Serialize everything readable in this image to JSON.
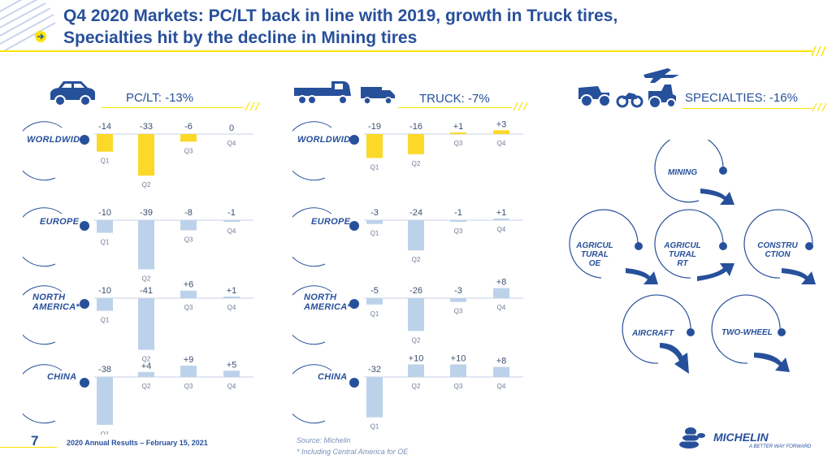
{
  "title": {
    "line1": "Q4 2020 Markets: PC/LT back in line with 2019, growth in Truck tires,",
    "line2": "Specialties hit by the decline in Mining tires"
  },
  "sections": {
    "pclt": "PC/LT: -13%",
    "truck": "TRUCK: -7%",
    "specialties": "SPECIALTIES: -16%"
  },
  "regions": [
    "WORLDWIDE",
    "EUROPE",
    "NORTH AMERICA*",
    "CHINA"
  ],
  "colors": {
    "brand": "#27509b",
    "highlight": "#fcd928",
    "bar": "#bcd2ea",
    "accent_line": "#fce500"
  },
  "chart_data": [
    {
      "type": "bar",
      "title": "PC/LT: -13%",
      "categories": [
        "Q1",
        "Q2",
        "Q3",
        "Q4"
      ],
      "series": [
        {
          "name": "WORLDWIDE",
          "values": [
            -14,
            -33,
            -6,
            0
          ],
          "labels": [
            "-14",
            "-33",
            "-6",
            "0"
          ]
        },
        {
          "name": "EUROPE",
          "values": [
            -10,
            -39,
            -8,
            -1
          ],
          "labels": [
            "-10",
            "-39",
            "-8",
            "-1"
          ]
        },
        {
          "name": "NORTH AMERICA*",
          "values": [
            -10,
            -41,
            6,
            1
          ],
          "labels": [
            "-10",
            "-41",
            "+6",
            "+1"
          ]
        },
        {
          "name": "CHINA",
          "values": [
            -38,
            4,
            9,
            5
          ],
          "labels": [
            "-38",
            "+4",
            "+9",
            "+5"
          ]
        }
      ]
    },
    {
      "type": "bar",
      "title": "TRUCK: -7%",
      "categories": [
        "Q1",
        "Q2",
        "Q3",
        "Q4"
      ],
      "series": [
        {
          "name": "WORLDWIDE",
          "values": [
            -19,
            -16,
            1,
            3
          ],
          "labels": [
            "-19",
            "-16",
            "+1",
            "+3"
          ]
        },
        {
          "name": "EUROPE",
          "values": [
            -3,
            -24,
            -1,
            1
          ],
          "labels": [
            "-3",
            "-24",
            "-1",
            "+1"
          ]
        },
        {
          "name": "NORTH AMERICA*",
          "values": [
            -5,
            -26,
            -3,
            8
          ],
          "labels": [
            "-5",
            "-26",
            "-3",
            "+8"
          ]
        },
        {
          "name": "CHINA",
          "values": [
            -32,
            10,
            10,
            8
          ],
          "labels": [
            "-32",
            "+10",
            "+10",
            "+8"
          ]
        }
      ]
    }
  ],
  "specialties": [
    {
      "key": "mining",
      "lines": [
        "MINING"
      ]
    },
    {
      "key": "agri-oe",
      "lines": [
        "AGRICUL",
        "TURAL",
        "OE"
      ]
    },
    {
      "key": "agri-rt",
      "lines": [
        "AGRICUL",
        "TURAL",
        "RT"
      ]
    },
    {
      "key": "construction",
      "lines": [
        "CONSTRU",
        "CTION"
      ]
    },
    {
      "key": "aircraft",
      "lines": [
        "AIRCRAFT"
      ]
    },
    {
      "key": "two-wheel",
      "lines": [
        "TWO-WHEEL"
      ]
    }
  ],
  "footer": {
    "page": "7",
    "text": "2020 Annual Results – February 15, 2021",
    "source": "Source: Michelin",
    "note": "* Including Central America for OE"
  },
  "logo": {
    "name": "MICHELIN",
    "tagline": "A BETTER WAY FORWARD"
  }
}
